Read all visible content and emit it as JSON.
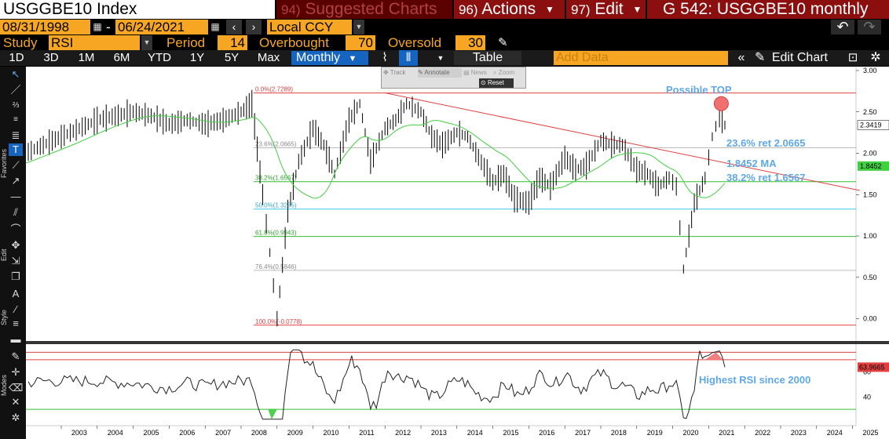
{
  "title_bar": {
    "ticker": "USGGBE10 Index",
    "suggested_num": "94)",
    "suggested_label": "Suggested Charts",
    "actions_num": "96)",
    "actions_label": "Actions",
    "edit_num": "97)",
    "edit_label": "Edit",
    "chart_id": "G 542: USGGBE10 monthly"
  },
  "date_row": {
    "start_date": "08/31/1998",
    "separator": "-",
    "end_date": "06/24/2021",
    "currency": "Local CCY"
  },
  "study_row": {
    "study_label": "Study",
    "study_value": "RSI",
    "period_label": "Period",
    "period_value": "14",
    "overbought_label": "Overbought",
    "overbought_value": "70",
    "oversold_label": "Oversold",
    "oversold_value": "30"
  },
  "period_row": {
    "periods": [
      "1D",
      "3D",
      "1M",
      "6M",
      "YTD",
      "1Y",
      "5Y",
      "Max"
    ],
    "frequency": "Monthly",
    "table_label": "Table",
    "add_data_placeholder": "Add Data",
    "edit_chart_label": "Edit Chart"
  },
  "toolbar_overlay": {
    "track": "Track",
    "annotate": "Annotate",
    "news": "News",
    "zoom": "Zoom",
    "reset": "Reset"
  },
  "left_toolbar": {
    "favorites_label": "Favorites",
    "edit_label": "Edit",
    "style_label": "Style",
    "modes_label": "Modes"
  },
  "chart_data": {
    "type": "line",
    "price_panel": {
      "yticks": [
        "3.00",
        "2.50",
        "2.00",
        "1.50",
        "1.00",
        "0.50",
        "0.00"
      ],
      "ylim": [
        -0.08,
        3.0
      ],
      "last_price_label": "2.3419",
      "ma_label": "1.8452",
      "fib_levels": [
        {
          "label": "0.0%(2.7289)",
          "value": 2.7289
        },
        {
          "label": "23.6%(2.0665)",
          "value": 2.0665
        },
        {
          "label": "38.2%(1.6567)",
          "value": 1.6567
        },
        {
          "label": "50.0%(1.3255)",
          "value": 1.3255
        },
        {
          "label": "61.8%(0.9943)",
          "value": 0.9943
        },
        {
          "label": "76.4%(0.5846)",
          "value": 0.5846
        },
        {
          "label": "100.0%(-0.0778)",
          "value": -0.0778
        }
      ],
      "annotations": {
        "possible_top": "Possible TOP",
        "ret_236": "23.6% ret 2.0665",
        "ma": "1.8452 MA",
        "ret_382": "38.2% ret 1.6567"
      },
      "series": [
        {
          "x": [
            1999.0,
            1999.5,
            2000.0,
            2000.5,
            2001.0,
            2001.5,
            2002.0,
            2002.5,
            2003.0,
            2003.5,
            2004.0,
            2004.5,
            2005.0,
            2005.5,
            2006.0,
            2006.5,
            2007.0,
            2007.5,
            2008.0,
            2008.3,
            2008.6,
            2008.8,
            2009.0,
            2009.3,
            2009.6,
            2010.0,
            2010.3,
            2010.6,
            2011.0,
            2011.3,
            2011.6,
            2012.0,
            2012.3,
            2012.6,
            2013.0,
            2013.3,
            2013.6,
            2014.0,
            2014.3,
            2014.6,
            2015.0,
            2015.3,
            2015.6,
            2016.0,
            2016.3,
            2016.6,
            2017.0,
            2017.3,
            2017.6,
            2018.0,
            2018.3,
            2018.6,
            2019.0,
            2019.3,
            2019.6,
            2019.9,
            2020.1,
            2020.3,
            2020.6,
            2020.9,
            2021.1,
            2021.3,
            2021.45
          ],
          "y": [
            1.65,
            1.8,
            1.9,
            1.75,
            1.85,
            1.95,
            2.0,
            2.1,
            2.2,
            2.3,
            2.4,
            2.45,
            2.5,
            2.45,
            2.35,
            2.4,
            2.35,
            2.4,
            2.5,
            2.6,
            1.5,
            0.8,
            0.0,
            1.3,
            1.9,
            2.3,
            2.1,
            1.75,
            2.4,
            2.6,
            1.9,
            2.3,
            2.4,
            2.6,
            2.5,
            2.2,
            2.1,
            2.25,
            2.2,
            1.95,
            1.65,
            1.75,
            1.45,
            1.4,
            1.7,
            1.6,
            1.95,
            1.8,
            1.85,
            2.15,
            2.1,
            2.1,
            1.8,
            1.75,
            1.6,
            1.7,
            1.6,
            0.6,
            1.4,
            1.7,
            2.2,
            2.45,
            2.34
          ]
        }
      ],
      "trendline": {
        "x": [
          2012.0,
          2025.2
        ],
        "y": [
          2.73,
          1.55
        ]
      }
    },
    "rsi_panel": {
      "last_value_label": "63.9665",
      "ytick_labels": [
        "60",
        "40"
      ],
      "annotation": "Highest RSI since 2000"
    },
    "x_tick_labels": [
      "2003",
      "2004",
      "2005",
      "2006",
      "2007",
      "2008",
      "2009",
      "2010",
      "2011",
      "2012",
      "2013",
      "2014",
      "2015",
      "2016",
      "2017",
      "2018",
      "2019",
      "2020",
      "2021",
      "2022",
      "2023",
      "2024",
      "2025"
    ]
  }
}
